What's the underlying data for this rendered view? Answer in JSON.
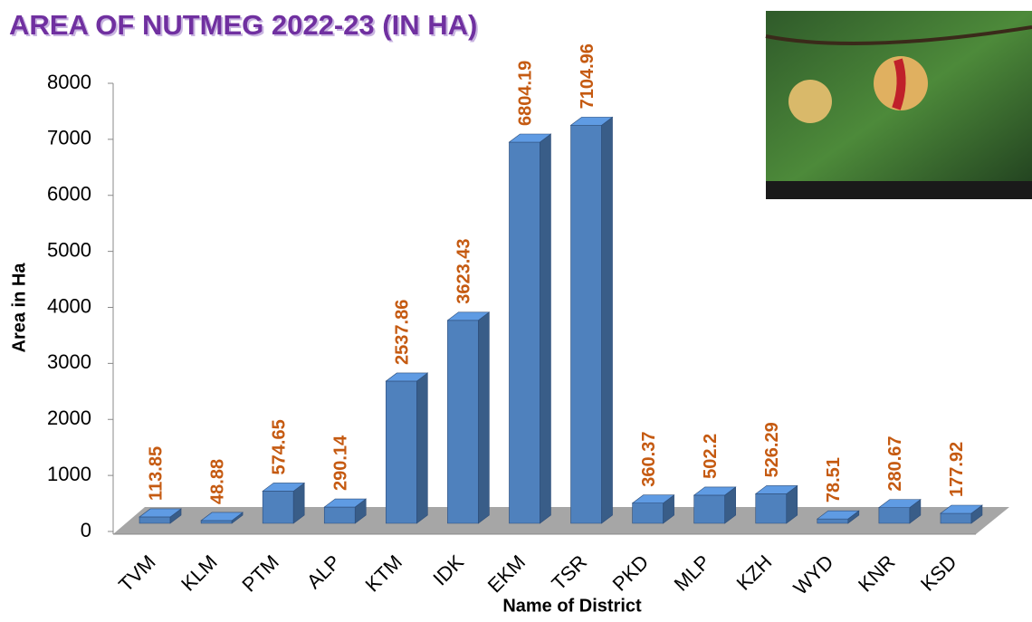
{
  "chart_data": {
    "type": "bar3d",
    "title": "AREA OF NUTMEG 2022-23 (IN HA)",
    "x_label": "Name of District",
    "y_label": "Area in Ha",
    "categories": [
      "TVM",
      "KLM",
      "PTM",
      "ALP",
      "KTM",
      "IDK",
      "EKM",
      "TSR",
      "PKD",
      "MLP",
      "KZH",
      "WYD",
      "KNR",
      "KSD"
    ],
    "values": [
      113.85,
      48.88,
      574.65,
      290.14,
      2537.86,
      3623.43,
      6804.19,
      7104.96,
      360.37,
      502.2,
      526.29,
      78.51,
      280.67,
      177.92
    ],
    "color": "#4f81bd",
    "ylim": [
      0,
      8000
    ],
    "yticks": [
      0,
      1000,
      2000,
      3000,
      4000,
      5000,
      6000,
      7000,
      8000
    ]
  }
}
